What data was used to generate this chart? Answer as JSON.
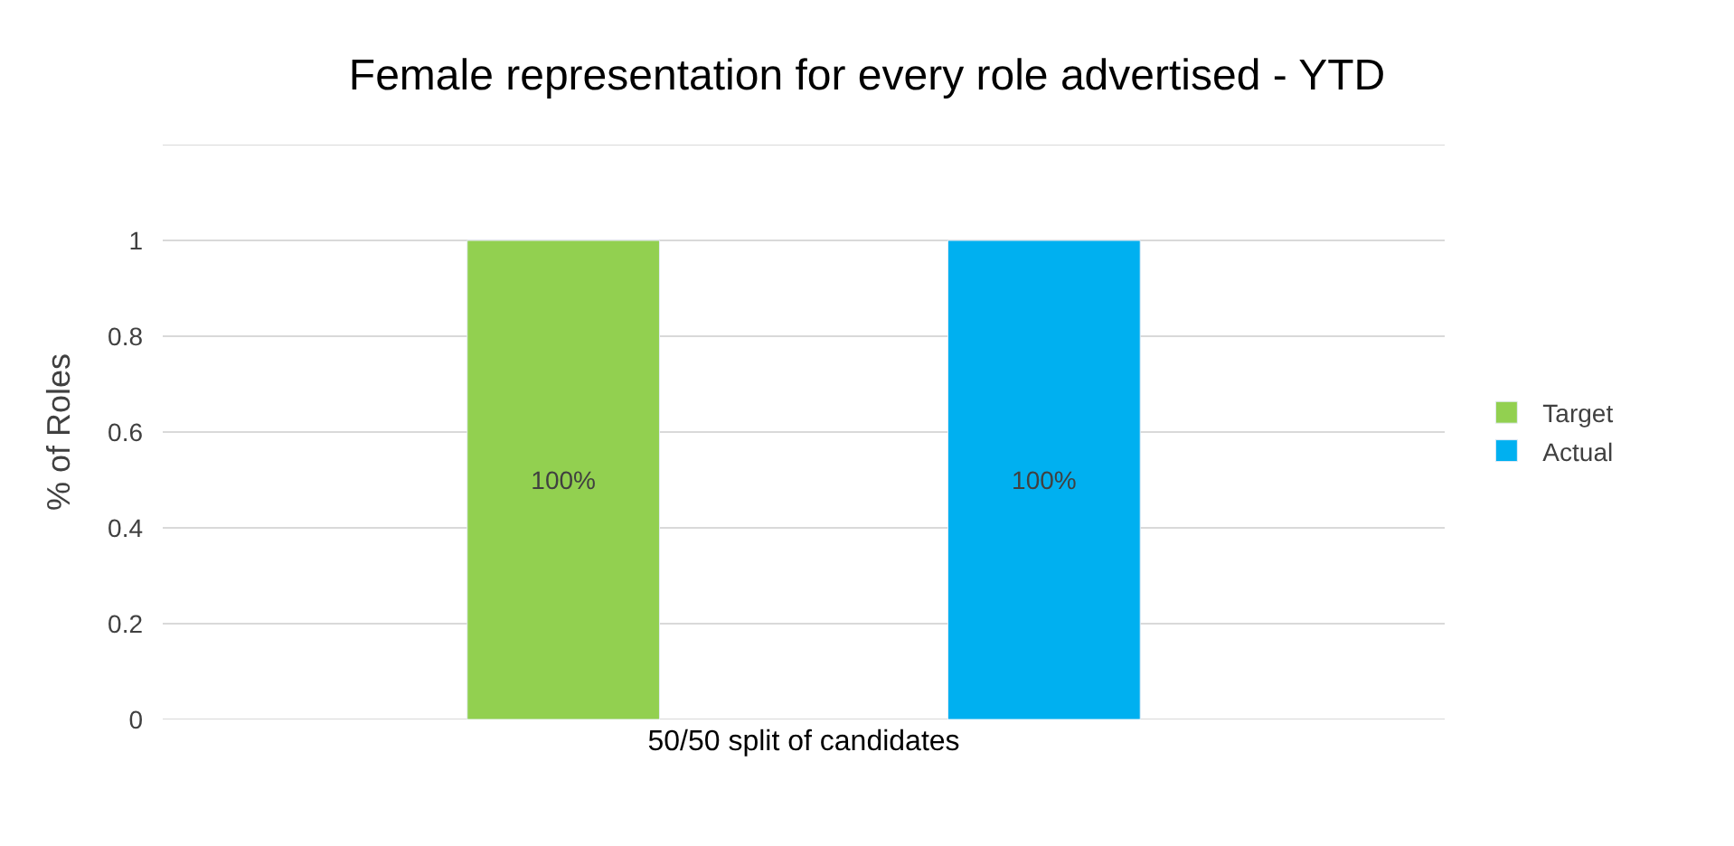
{
  "chart_data": {
    "type": "bar",
    "title": "Female representation for every role advertised - YTD",
    "ylabel": "% of Roles",
    "categories": [
      "50/50 split of candidates"
    ],
    "series": [
      {
        "name": "Target",
        "color": "#92d050",
        "values": [
          1
        ],
        "value_labels": [
          "100%"
        ]
      },
      {
        "name": "Actual",
        "color": "#00b0f0",
        "values": [
          1
        ],
        "value_labels": [
          "100%"
        ]
      }
    ],
    "ylim": [
      0,
      1.2
    ],
    "yticks": [
      0,
      0.2,
      0.4,
      0.6,
      0.8,
      1,
      {
        "value": 1.2,
        "label": null
      }
    ],
    "grid": "y",
    "legend": "right"
  }
}
